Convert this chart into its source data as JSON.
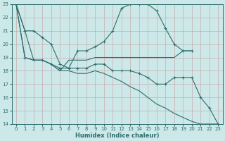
{
  "xlabel": "Humidex (Indice chaleur)",
  "background_color": "#cce8e8",
  "line_color": "#2e6e6e",
  "xlim": [
    -0.5,
    23.5
  ],
  "ylim": [
    14,
    23
  ],
  "xticks": [
    0,
    1,
    2,
    3,
    4,
    5,
    6,
    7,
    8,
    9,
    10,
    11,
    12,
    13,
    14,
    15,
    16,
    17,
    18,
    19,
    20,
    21,
    22,
    23
  ],
  "yticks": [
    14,
    15,
    16,
    17,
    18,
    19,
    20,
    21,
    22,
    23
  ],
  "line1_x": [
    0,
    1,
    2,
    3,
    4,
    5,
    6,
    7,
    8,
    9,
    10,
    11,
    12,
    13,
    14,
    15,
    16,
    17,
    18,
    19,
    20
  ],
  "line1_y": [
    23,
    21,
    21,
    20.5,
    20,
    18.5,
    18.2,
    19.5,
    19.5,
    19.8,
    20.2,
    21.0,
    22.7,
    23.0,
    23.0,
    23.0,
    22.5,
    21.2,
    20.0,
    19.5,
    19.5
  ],
  "line2_x": [
    0,
    1,
    2,
    3,
    4,
    5,
    6,
    7,
    8,
    9,
    10,
    11,
    12,
    13,
    14,
    15,
    16,
    17,
    18,
    19,
    20
  ],
  "line2_y": [
    23,
    21,
    18.8,
    18.8,
    18.5,
    18.0,
    18.8,
    18.8,
    18.8,
    19.0,
    19.0,
    19.0,
    19.0,
    19.0,
    19.0,
    19.0,
    19.0,
    19.0,
    19.0,
    19.5,
    19.5
  ],
  "line3_x": [
    0,
    1,
    2,
    3,
    4,
    5,
    6,
    7,
    8,
    9,
    10,
    11,
    12,
    13,
    14,
    15,
    16,
    17,
    18,
    19,
    20,
    21,
    22,
    23
  ],
  "line3_y": [
    23,
    19,
    18.8,
    18.8,
    18.5,
    18.2,
    18.2,
    18.2,
    18.2,
    18.5,
    18.5,
    18.0,
    18.0,
    18.0,
    17.8,
    17.5,
    17.0,
    17.0,
    17.5,
    17.5,
    17.5,
    16.0,
    15.2,
    14.0
  ],
  "line4_x": [
    0,
    1,
    2,
    3,
    4,
    5,
    6,
    7,
    8,
    9,
    10,
    11,
    12,
    13,
    14,
    15,
    16,
    17,
    18,
    19,
    20,
    21,
    22,
    23
  ],
  "line4_y": [
    23,
    19,
    18.8,
    18.8,
    18.5,
    18.0,
    18.0,
    17.8,
    17.8,
    18.0,
    17.8,
    17.5,
    17.2,
    16.8,
    16.5,
    16.0,
    15.5,
    15.2,
    14.8,
    14.5,
    14.2,
    14.0,
    14.0,
    14.0
  ]
}
